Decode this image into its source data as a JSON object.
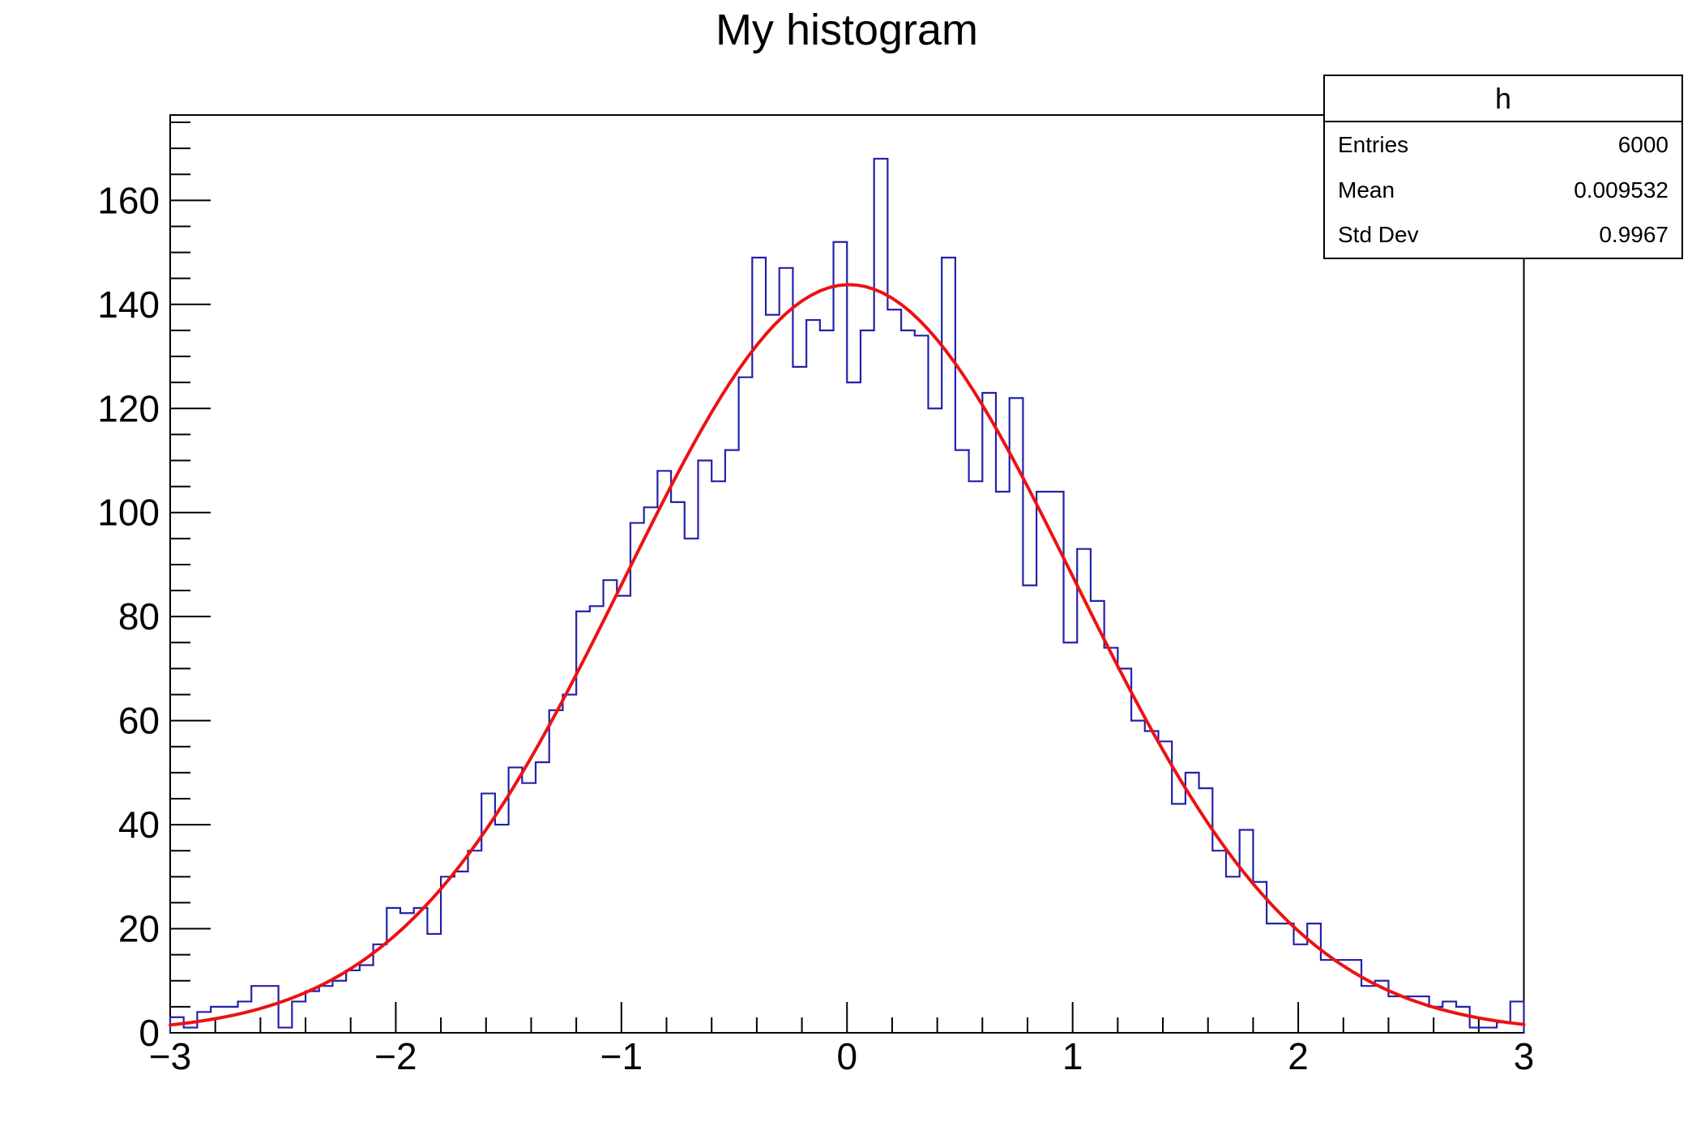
{
  "title": "My histogram",
  "stats": {
    "title": "h",
    "rows": [
      {
        "label": "Entries",
        "value": "6000"
      },
      {
        "label": "Mean",
        "value": "0.009532"
      },
      {
        "label": "Std Dev",
        "value": "0.9967"
      }
    ]
  },
  "colors": {
    "histogram": "#2222aa",
    "fit": "#ec1212",
    "frame": "#000000",
    "background": "#ffffff",
    "text": "#000000"
  },
  "chart_data": {
    "type": "bar",
    "subtype": "histogram-step-outline",
    "title": "My histogram",
    "xlabel": "",
    "ylabel": "",
    "x_range": [
      -3,
      3
    ],
    "ylim": [
      0,
      176.4
    ],
    "n_bins": 100,
    "bin_width": 0.06,
    "values": [
      3,
      1,
      4,
      5,
      5,
      6,
      9,
      9,
      1,
      6,
      8,
      9,
      10,
      12,
      13,
      17,
      24,
      23,
      24,
      19,
      30,
      31,
      35,
      46,
      40,
      51,
      48,
      52,
      62,
      65,
      81,
      82,
      87,
      84,
      98,
      101,
      108,
      102,
      95,
      110,
      106,
      112,
      126,
      149,
      138,
      147,
      128,
      137,
      135,
      152,
      125,
      135,
      168,
      139,
      135,
      134,
      120,
      149,
      112,
      106,
      123,
      104,
      122,
      86,
      104,
      104,
      75,
      93,
      83,
      74,
      70,
      60,
      58,
      56,
      44,
      50,
      47,
      35,
      30,
      39,
      29,
      21,
      21,
      17,
      21,
      14,
      14,
      14,
      9,
      10,
      7,
      7,
      7,
      5,
      6,
      5,
      1,
      1,
      2,
      6
    ],
    "x_ticks": [
      -3,
      -2,
      -1,
      0,
      1,
      2,
      3
    ],
    "x_minor_step": 0.2,
    "y_ticks": [
      0,
      20,
      40,
      60,
      80,
      100,
      120,
      140,
      160
    ],
    "y_minor_step": 5,
    "grid": false,
    "legend": "none",
    "fit": {
      "type": "gaussian",
      "amplitude": 143.8,
      "mean": 0.009532,
      "sigma": 0.9967
    }
  }
}
